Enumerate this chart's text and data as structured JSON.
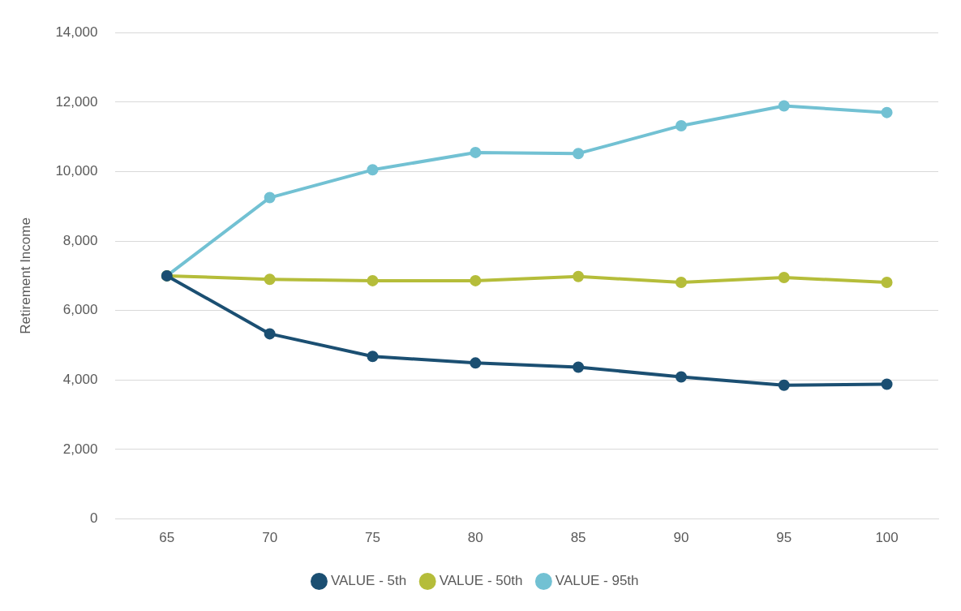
{
  "chart_data": {
    "type": "line",
    "ylabel": "Retirement Income",
    "categories": [
      "65",
      "70",
      "75",
      "80",
      "85",
      "90",
      "95",
      "100"
    ],
    "series": [
      {
        "name": "VALUE - 5th",
        "color": "#1b4f72",
        "values": [
          7000,
          5330,
          4680,
          4490,
          4370,
          4090,
          3850,
          3880
        ]
      },
      {
        "name": "VALUE - 50th",
        "color": "#b5bd3a",
        "values": [
          7000,
          6900,
          6860,
          6860,
          6980,
          6810,
          6950,
          6810
        ]
      },
      {
        "name": "VALUE - 95th",
        "color": "#72c1d3",
        "values": [
          7000,
          9250,
          10050,
          10550,
          10520,
          11320,
          11890,
          11700
        ]
      }
    ],
    "ylim": [
      0,
      14000
    ],
    "yticks": [
      {
        "value": 0,
        "label": "0"
      },
      {
        "value": 2000,
        "label": "2,000"
      },
      {
        "value": 4000,
        "label": "4,000"
      },
      {
        "value": 6000,
        "label": "6,000"
      },
      {
        "value": 8000,
        "label": "8,000"
      },
      {
        "value": 10000,
        "label": "10,000"
      },
      {
        "value": 12000,
        "label": "12,000"
      },
      {
        "value": 14000,
        "label": "14,000"
      }
    ],
    "grid": "y",
    "legend": "bottom",
    "marker": "circle",
    "line_style": "solid"
  }
}
